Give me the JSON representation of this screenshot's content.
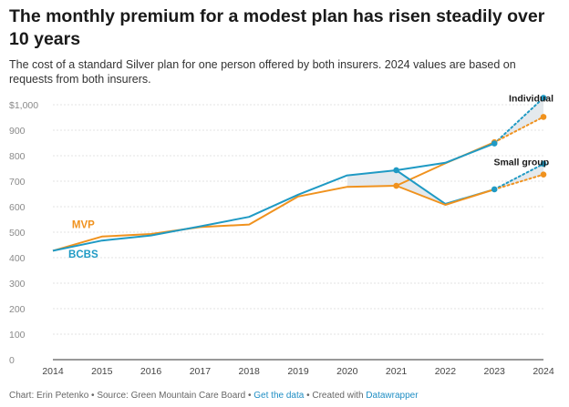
{
  "header": {
    "title": "The monthly premium for a modest plan has risen steadily over 10 years",
    "subtitle": "The cost of a standard Silver plan for one person offered by both insurers. 2024 values are based on requests from both insurers."
  },
  "footer": {
    "credit": "Chart: Erin Petenko",
    "source": "Source: Green Mountain Care Board",
    "get_data": "Get the data",
    "created_prefix": "Created with",
    "created_tool": "Datawrapper",
    "separator": " • "
  },
  "colors": {
    "bcbs": "#1f9ac4",
    "mvp": "#f0921e",
    "grid": "#e3e3e3",
    "band": "#dde3e8"
  },
  "chart_data": {
    "type": "line",
    "x": [
      2014,
      2015,
      2016,
      2017,
      2018,
      2019,
      2020,
      2021,
      2022,
      2023,
      2024
    ],
    "x_tick_labels": [
      "2014",
      "2015",
      "2016",
      "2017",
      "2018",
      "2019",
      "2020",
      "2021",
      "2022",
      "2023",
      "2024"
    ],
    "y_ticks": [
      0,
      100,
      200,
      300,
      400,
      500,
      600,
      700,
      800,
      900,
      1000
    ],
    "y_tick_labels": [
      "0",
      "100",
      "200",
      "300",
      "400",
      "500",
      "600",
      "700",
      "800",
      "900",
      "$1,000"
    ],
    "ylim": [
      0,
      1000
    ],
    "grid": true,
    "series": [
      {
        "name": "BCBS",
        "key": "bcbs",
        "values": [
          427,
          467,
          487,
          523,
          560,
          647,
          723,
          743,
          772,
          848,
          null
        ]
      },
      {
        "name": "MVP",
        "key": "mvp",
        "values": [
          427,
          483,
          493,
          520,
          530,
          640,
          678,
          682,
          770,
          853,
          null
        ]
      }
    ],
    "segments": [
      {
        "series": "bcbs",
        "style": "solid",
        "x": [
          2021,
          2022,
          2023
        ],
        "y": [
          743,
          611,
          668
        ]
      },
      {
        "series": "mvp",
        "style": "solid",
        "x": [
          2021,
          2022,
          2023
        ],
        "y": [
          682,
          607,
          668
        ]
      },
      {
        "series": "bcbs",
        "style": "dotted",
        "x": [
          2023,
          2024
        ],
        "y": [
          848,
          1027
        ]
      },
      {
        "series": "mvp",
        "style": "dotted",
        "x": [
          2023,
          2024
        ],
        "y": [
          853,
          952
        ]
      },
      {
        "series": "bcbs",
        "style": "dotted",
        "x": [
          2023,
          2024
        ],
        "y": [
          668,
          768
        ]
      },
      {
        "series": "mvp",
        "style": "dotted",
        "x": [
          2023,
          2024
        ],
        "y": [
          668,
          726
        ]
      }
    ],
    "points": [
      {
        "series": "bcbs",
        "x": 2021,
        "y": 743
      },
      {
        "series": "mvp",
        "x": 2021,
        "y": 682
      },
      {
        "series": "mvp",
        "x": 2023,
        "y": 853
      },
      {
        "series": "bcbs",
        "x": 2023,
        "y": 848
      },
      {
        "series": "bcbs",
        "x": 2023,
        "y": 668
      },
      {
        "series": "bcbs",
        "x": 2024,
        "y": 1027
      },
      {
        "series": "mvp",
        "x": 2024,
        "y": 952
      },
      {
        "series": "bcbs",
        "x": 2024,
        "y": 768
      },
      {
        "series": "mvp",
        "x": 2024,
        "y": 726
      }
    ],
    "annotations": [
      {
        "text": "Individual",
        "x": 2023.75,
        "y": 1027
      },
      {
        "text": "Small group",
        "x": 2023.55,
        "y": 776
      }
    ],
    "series_labels": [
      {
        "text": "MVP",
        "series": "mvp",
        "x": 2014.62,
        "y": 530
      },
      {
        "text": "BCBS",
        "series": "bcbs",
        "x": 2014.62,
        "y": 415
      }
    ]
  }
}
